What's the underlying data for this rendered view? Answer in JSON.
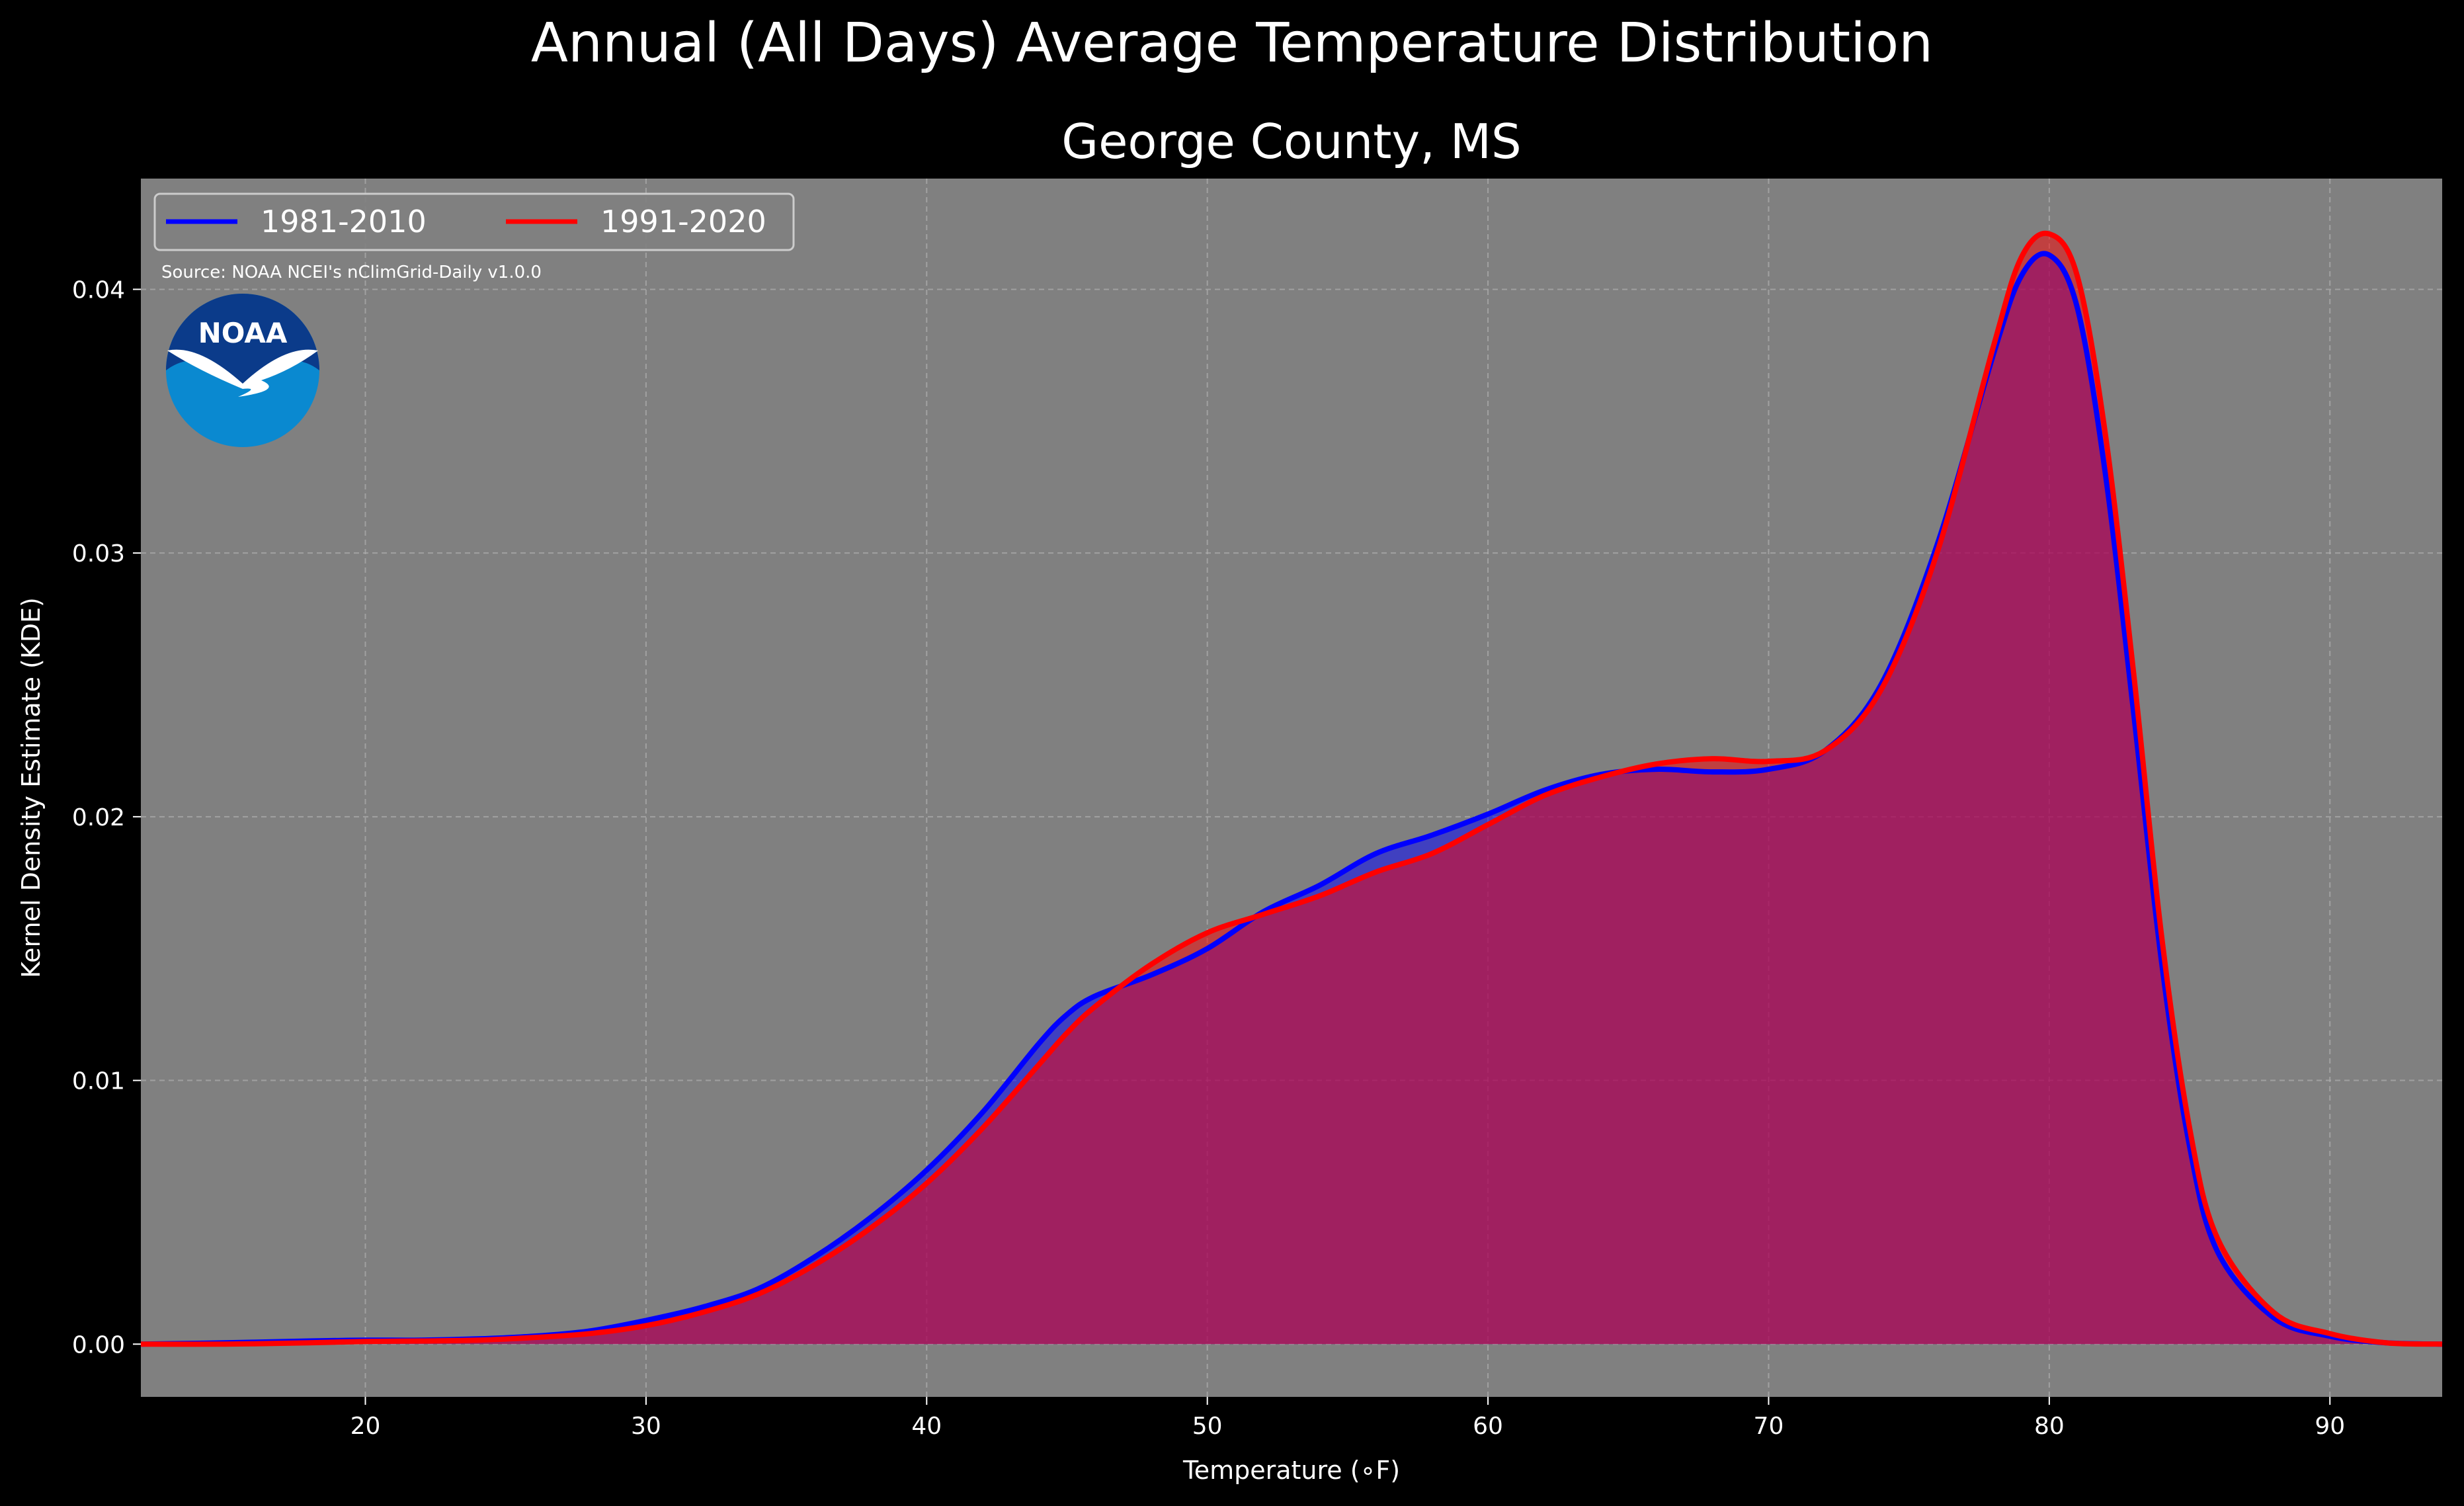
{
  "chart_data": {
    "type": "area",
    "title": "Annual (All Days) Average Temperature Distribution",
    "subtitle": "George County, MS",
    "xlabel": "Temperature ($^\\circ$F)",
    "xlabel_display": "Temperature (∘F)",
    "ylabel": "Kernel Density Estimate (KDE)",
    "xlim": [
      12,
      94
    ],
    "ylim": [
      -0.002,
      0.0442
    ],
    "x_ticks": [
      20,
      30,
      40,
      50,
      60,
      70,
      80,
      90
    ],
    "y_ticks": [
      0.0,
      0.01,
      0.02,
      0.03,
      0.04
    ],
    "y_tick_labels": [
      "0.00",
      "0.01",
      "0.02",
      "0.03",
      "0.04"
    ],
    "grid": true,
    "legend_placement": "top-left",
    "source_note": "Source: NOAA NCEI's nClimGrid-Daily v1.0.0",
    "logo_text": "NOAA",
    "colors": {
      "background": "#000000",
      "plot_bg": "#808080",
      "series_1981": "#0000ff",
      "series_1991": "#ff0000",
      "overlap_fill": "#9c1f5c"
    },
    "series": [
      {
        "name": "1981-2010",
        "color": "#0000ff",
        "x": [
          12,
          15,
          18,
          20,
          22,
          24,
          26,
          28,
          30,
          32,
          34,
          36,
          38,
          40,
          42,
          44,
          45,
          46,
          48,
          50,
          52,
          54,
          56,
          58,
          60,
          62,
          64,
          66,
          68,
          70,
          72,
          74,
          76,
          78,
          79,
          80,
          81,
          82,
          83,
          84,
          85,
          86,
          88,
          90,
          92,
          94
        ],
        "y": [
          0.0,
          5e-05,
          0.00012,
          0.00015,
          0.00015,
          0.0002,
          0.0003,
          0.0005,
          0.0009,
          0.0014,
          0.0021,
          0.0033,
          0.0048,
          0.0066,
          0.0088,
          0.0114,
          0.0125,
          0.0132,
          0.014,
          0.015,
          0.0164,
          0.0174,
          0.0186,
          0.0193,
          0.0201,
          0.021,
          0.0216,
          0.0218,
          0.0217,
          0.0218,
          0.0225,
          0.025,
          0.0303,
          0.0375,
          0.0405,
          0.0413,
          0.0393,
          0.033,
          0.024,
          0.0145,
          0.0075,
          0.0035,
          0.001,
          0.0003,
          5e-05,
          0.0
        ]
      },
      {
        "name": "1991-2020",
        "color": "#ff0000",
        "x": [
          12,
          15,
          18,
          20,
          22,
          24,
          26,
          28,
          30,
          32,
          34,
          36,
          38,
          40,
          42,
          44,
          45,
          46,
          48,
          50,
          52,
          54,
          56,
          58,
          60,
          62,
          64,
          66,
          68,
          70,
          72,
          74,
          76,
          78,
          79,
          80,
          81,
          82,
          83,
          84,
          85,
          86,
          88,
          90,
          92,
          94
        ],
        "y": [
          0.0,
          0.0,
          5e-05,
          0.0001,
          0.00012,
          0.00015,
          0.00025,
          0.0004,
          0.0007,
          0.0012,
          0.0019,
          0.003,
          0.0044,
          0.0061,
          0.0082,
          0.0106,
          0.0118,
          0.0128,
          0.0144,
          0.0156,
          0.0163,
          0.017,
          0.0179,
          0.0186,
          0.0197,
          0.0208,
          0.0215,
          0.022,
          0.0222,
          0.0221,
          0.0225,
          0.0248,
          0.03,
          0.0378,
          0.0412,
          0.0421,
          0.0405,
          0.0345,
          0.0255,
          0.0155,
          0.0082,
          0.004,
          0.0012,
          0.0004,
          5e-05,
          0.0
        ]
      }
    ]
  }
}
